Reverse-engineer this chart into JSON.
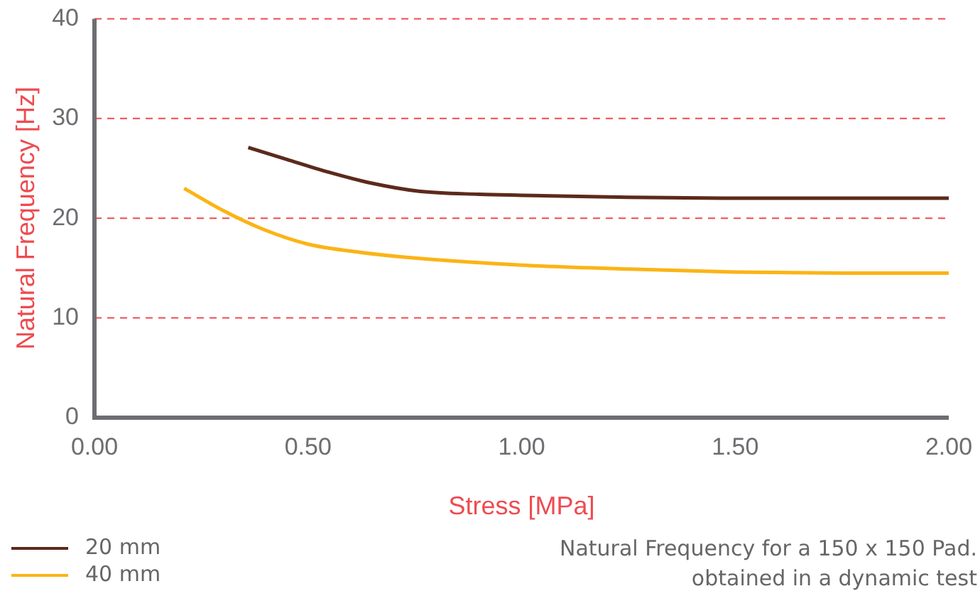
{
  "chart_data": {
    "type": "line",
    "xlabel": "Stress [MPa]",
    "ylabel": "Natural Frequency [Hz]",
    "xlim": [
      0,
      2
    ],
    "xticks": [
      {
        "value": 0,
        "label": "0.00"
      },
      {
        "value": 0.5,
        "label": "0.50"
      },
      {
        "value": 1,
        "label": "1.00"
      },
      {
        "value": 1.5,
        "label": "1.50"
      },
      {
        "value": 2,
        "label": "2.00"
      }
    ],
    "ylim": [
      0,
      40
    ],
    "yticks": [
      0,
      10,
      20,
      30,
      40
    ],
    "grid": "y",
    "legend": "bottom left",
    "marker": "none",
    "line_style": "solid",
    "series": [
      {
        "name": "20 mm",
        "color": "#5c2a1c",
        "x": [
          0.36,
          0.45,
          0.55,
          0.65,
          0.76,
          0.9,
          1.0,
          1.25,
          1.5,
          1.75,
          2.0
        ],
        "values": [
          27.1,
          25.9,
          24.6,
          23.5,
          22.7,
          22.4,
          22.3,
          22.1,
          22.0,
          22.0,
          22.0
        ]
      },
      {
        "name": "40 mm",
        "color": "#fbb416",
        "x": [
          0.21,
          0.3,
          0.4,
          0.5,
          0.6,
          0.75,
          1.0,
          1.25,
          1.5,
          1.75,
          2.0
        ],
        "values": [
          23.0,
          20.8,
          18.8,
          17.4,
          16.7,
          16.0,
          15.3,
          14.9,
          14.6,
          14.5,
          14.5
        ]
      }
    ],
    "annotations": [
      "Natural Frequency for a 150 x 150 Pad.\nobtained in a dynamic test"
    ]
  }
}
